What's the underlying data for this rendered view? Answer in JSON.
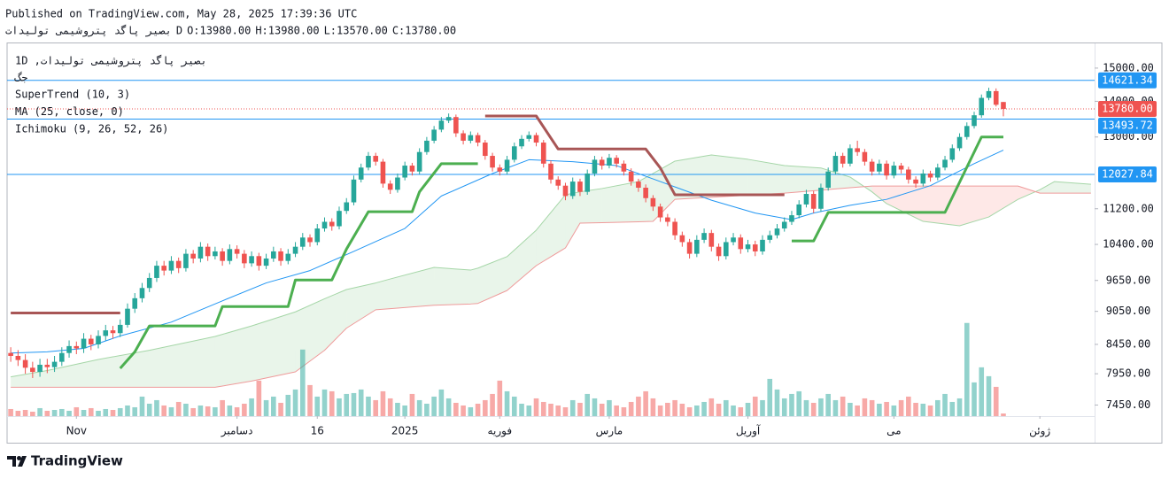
{
  "header": {
    "published": "Published on TradingView.com, May 28, 2025 17:39:36 UTC",
    "symbol": "تادیلوت یمیشورتپ دگاپ ریصب",
    "interval": "D",
    "ohlc": [
      "O:13980.00",
      "H:13980.00",
      "L:13570.00",
      "C:13780.00"
    ]
  },
  "chart_data": {
    "type": "candlestick",
    "legend": {
      "title": "1D ,تادیلوت یمیشورتپ دگاپ ریصب",
      "exchange": "گج",
      "indicators": [
        "SuperTrend (10, 3)",
        "MA (25, close, 0)",
        "Ichimoku (9, 26, 52, 26)"
      ]
    },
    "log_scale": true,
    "grid": false,
    "ylim": [
      7280,
      15790
    ],
    "yticks": [
      {
        "value": 15000,
        "label": "15000.00"
      },
      {
        "value": 14000,
        "label": "14000.00"
      },
      {
        "value": 13000,
        "label": "13000.00"
      },
      {
        "value": 11200,
        "label": "11200.00"
      },
      {
        "value": 10400,
        "label": "10400.00"
      },
      {
        "value": 9650,
        "label": "9650.00"
      },
      {
        "value": 9050,
        "label": "9050.00"
      },
      {
        "value": 8450,
        "label": "8450.00"
      },
      {
        "value": 7950,
        "label": "7950.00"
      },
      {
        "value": 7450,
        "label": "7450.00"
      }
    ],
    "xlim": [
      -0.5,
      148.5
    ],
    "xticks": [
      {
        "value": 9,
        "label": "Nov"
      },
      {
        "value": 31,
        "label": "دسامبر"
      },
      {
        "value": 42,
        "label": "16"
      },
      {
        "value": 54,
        "label": "2025"
      },
      {
        "value": 67,
        "label": "فوریه"
      },
      {
        "value": 82,
        "label": "مارس"
      },
      {
        "value": 101,
        "label": "آوریل"
      },
      {
        "value": 121,
        "label": "می"
      },
      {
        "value": 141,
        "label": "ژوئن"
      }
    ],
    "up_color": "#26a69a",
    "down_color": "#ef5350",
    "candles": [
      [
        8300,
        8400,
        8150,
        8250
      ],
      [
        8250,
        8350,
        8080,
        8180
      ],
      [
        8180,
        8280,
        7950,
        8050
      ],
      [
        8050,
        8150,
        7880,
        7980
      ],
      [
        7980,
        8200,
        7900,
        8100
      ],
      [
        8100,
        8200,
        7960,
        8060
      ],
      [
        8060,
        8250,
        7980,
        8150
      ],
      [
        8150,
        8400,
        8080,
        8300
      ],
      [
        8300,
        8520,
        8220,
        8420
      ],
      [
        8420,
        8500,
        8280,
        8380
      ],
      [
        8380,
        8650,
        8300,
        8550
      ],
      [
        8550,
        8620,
        8350,
        8450
      ],
      [
        8450,
        8700,
        8380,
        8600
      ],
      [
        8600,
        8800,
        8520,
        8700
      ],
      [
        8700,
        8780,
        8550,
        8650
      ],
      [
        8650,
        8900,
        8580,
        8800
      ],
      [
        8800,
        9200,
        8750,
        9100
      ],
      [
        9100,
        9400,
        9020,
        9300
      ],
      [
        9300,
        9600,
        9220,
        9500
      ],
      [
        9500,
        9800,
        9420,
        9700
      ],
      [
        9700,
        10050,
        9620,
        9950
      ],
      [
        9950,
        10050,
        9750,
        9850
      ],
      [
        9850,
        10150,
        9780,
        10050
      ],
      [
        10050,
        10120,
        9800,
        9900
      ],
      [
        9900,
        10300,
        9830,
        10200
      ],
      [
        10200,
        10280,
        10000,
        10100
      ],
      [
        10100,
        10450,
        10020,
        10350
      ],
      [
        10350,
        10420,
        10050,
        10150
      ],
      [
        10150,
        10350,
        10080,
        10250
      ],
      [
        10250,
        10320,
        9950,
        10050
      ],
      [
        10050,
        10400,
        9980,
        10300
      ],
      [
        10300,
        10380,
        10100,
        10200
      ],
      [
        10200,
        10280,
        9900,
        10000
      ],
      [
        10000,
        10250,
        9930,
        10150
      ],
      [
        10150,
        10220,
        9850,
        9950
      ],
      [
        9950,
        10200,
        9880,
        10100
      ],
      [
        10100,
        10350,
        10030,
        10250
      ],
      [
        10250,
        10320,
        9950,
        10050
      ],
      [
        10050,
        10300,
        9980,
        10200
      ],
      [
        10200,
        10450,
        10130,
        10350
      ],
      [
        10350,
        10650,
        10280,
        10550
      ],
      [
        10550,
        10620,
        10350,
        10450
      ],
      [
        10450,
        10850,
        10380,
        10750
      ],
      [
        10750,
        11000,
        10680,
        10900
      ],
      [
        10900,
        10980,
        10700,
        10800
      ],
      [
        10800,
        11250,
        10730,
        11150
      ],
      [
        11150,
        11450,
        11080,
        11350
      ],
      [
        11350,
        12000,
        11280,
        11900
      ],
      [
        11900,
        12300,
        11830,
        12200
      ],
      [
        12200,
        12600,
        12130,
        12500
      ],
      [
        12500,
        12580,
        12250,
        12350
      ],
      [
        12350,
        12420,
        11700,
        11800
      ],
      [
        11800,
        11880,
        11550,
        11650
      ],
      [
        11650,
        12050,
        11580,
        11950
      ],
      [
        11950,
        12350,
        11880,
        12250
      ],
      [
        12250,
        12320,
        12000,
        12100
      ],
      [
        12100,
        12700,
        12030,
        12600
      ],
      [
        12600,
        13000,
        12530,
        12900
      ],
      [
        12900,
        13300,
        12830,
        13200
      ],
      [
        13200,
        13550,
        13130,
        13450
      ],
      [
        13450,
        13650,
        13380,
        13550
      ],
      [
        13550,
        13620,
        13000,
        13100
      ],
      [
        13100,
        13180,
        12800,
        12900
      ],
      [
        12900,
        13150,
        12830,
        13050
      ],
      [
        13050,
        13120,
        12750,
        12850
      ],
      [
        12850,
        12920,
        12400,
        12500
      ],
      [
        12500,
        12580,
        12100,
        12200
      ],
      [
        12200,
        12280,
        12000,
        12100
      ],
      [
        12100,
        12500,
        12030,
        12400
      ],
      [
        12400,
        12850,
        12330,
        12750
      ],
      [
        12750,
        13050,
        12680,
        12950
      ],
      [
        12950,
        13150,
        12880,
        13050
      ],
      [
        13050,
        13120,
        12750,
        12850
      ],
      [
        12850,
        12920,
        12200,
        12300
      ],
      [
        12300,
        12380,
        11800,
        11900
      ],
      [
        11900,
        11980,
        11650,
        11750
      ],
      [
        11750,
        11820,
        11400,
        11500
      ],
      [
        11500,
        11950,
        11430,
        11850
      ],
      [
        11850,
        11920,
        11500,
        11600
      ],
      [
        11600,
        12150,
        11530,
        12050
      ],
      [
        12050,
        12500,
        11980,
        12400
      ],
      [
        12400,
        12480,
        12150,
        12250
      ],
      [
        12250,
        12550,
        12180,
        12450
      ],
      [
        12450,
        12520,
        12200,
        12300
      ],
      [
        12300,
        12380,
        12000,
        12100
      ],
      [
        12100,
        12180,
        11750,
        11850
      ],
      [
        11850,
        11920,
        11600,
        11700
      ],
      [
        11700,
        11780,
        11350,
        11450
      ],
      [
        11450,
        11520,
        11150,
        11250
      ],
      [
        11250,
        11320,
        10900,
        11000
      ],
      [
        11000,
        11080,
        10800,
        10900
      ],
      [
        10900,
        10980,
        10500,
        10600
      ],
      [
        10600,
        10680,
        10350,
        10450
      ],
      [
        10450,
        10520,
        10100,
        10200
      ],
      [
        10200,
        10600,
        10130,
        10500
      ],
      [
        10500,
        10750,
        10430,
        10650
      ],
      [
        10650,
        10720,
        10250,
        10350
      ],
      [
        10350,
        10420,
        10050,
        10150
      ],
      [
        10150,
        10550,
        10080,
        10450
      ],
      [
        10450,
        10650,
        10380,
        10550
      ],
      [
        10550,
        10620,
        10200,
        10300
      ],
      [
        10300,
        10500,
        10230,
        10400
      ],
      [
        10400,
        10480,
        10150,
        10250
      ],
      [
        10250,
        10600,
        10180,
        10500
      ],
      [
        10500,
        10700,
        10430,
        10600
      ],
      [
        10600,
        10850,
        10530,
        10750
      ],
      [
        10750,
        11000,
        10680,
        10900
      ],
      [
        10900,
        11150,
        10830,
        11050
      ],
      [
        11050,
        11400,
        10980,
        11300
      ],
      [
        11300,
        11650,
        11230,
        11550
      ],
      [
        11550,
        11620,
        11100,
        11200
      ],
      [
        11200,
        11800,
        11130,
        11700
      ],
      [
        11700,
        12200,
        11630,
        12100
      ],
      [
        12100,
        12600,
        12030,
        12500
      ],
      [
        12500,
        12580,
        12200,
        12300
      ],
      [
        12300,
        12800,
        12230,
        12700
      ],
      [
        12700,
        12900,
        12500,
        12600
      ],
      [
        12600,
        12680,
        12250,
        12350
      ],
      [
        12350,
        12420,
        12000,
        12100
      ],
      [
        12100,
        12400,
        12030,
        12300
      ],
      [
        12300,
        12380,
        11900,
        12000
      ],
      [
        12000,
        12350,
        11930,
        12250
      ],
      [
        12250,
        12320,
        12050,
        12150
      ],
      [
        12150,
        12220,
        11800,
        11900
      ],
      [
        11900,
        11980,
        11700,
        11800
      ],
      [
        11800,
        12150,
        11730,
        12050
      ],
      [
        12050,
        12120,
        11850,
        11950
      ],
      [
        11950,
        12300,
        11880,
        12200
      ],
      [
        12200,
        12500,
        12130,
        12400
      ],
      [
        12400,
        12800,
        12330,
        12700
      ],
      [
        12700,
        13100,
        12630,
        13000
      ],
      [
        13000,
        13400,
        12930,
        13300
      ],
      [
        13300,
        13700,
        13230,
        13600
      ],
      [
        13600,
        14200,
        13530,
        14100
      ],
      [
        14100,
        14400,
        14030,
        14300
      ],
      [
        14300,
        14380,
        13850,
        13900
      ],
      [
        13980,
        13980,
        13570,
        13780
      ]
    ],
    "volume": {
      "vlim": [
        0,
        420
      ],
      "values": [
        8,
        6,
        7,
        5,
        9,
        6,
        7,
        8,
        6,
        10,
        7,
        9,
        6,
        8,
        7,
        9,
        12,
        10,
        22,
        14,
        18,
        12,
        10,
        16,
        14,
        9,
        12,
        11,
        10,
        18,
        12,
        10,
        14,
        20,
        40,
        18,
        22,
        15,
        24,
        30,
        75,
        35,
        22,
        30,
        28,
        20,
        25,
        26,
        30,
        22,
        18,
        28,
        20,
        15,
        12,
        25,
        18,
        14,
        22,
        30,
        20,
        15,
        12,
        10,
        14,
        18,
        25,
        40,
        28,
        22,
        14,
        12,
        20,
        16,
        14,
        12,
        10,
        18,
        15,
        25,
        20,
        14,
        18,
        12,
        10,
        16,
        22,
        28,
        20,
        12,
        15,
        18,
        14,
        10,
        12,
        16,
        20,
        14,
        18,
        12,
        10,
        15,
        22,
        18,
        42,
        30,
        20,
        25,
        28,
        18,
        15,
        20,
        25,
        18,
        22,
        15,
        12,
        20,
        18,
        14,
        16,
        12,
        18,
        22,
        15,
        14,
        12,
        18,
        25,
        16,
        20,
        105,
        38,
        55,
        45,
        33,
        3
      ]
    },
    "ma": {
      "color": "#2196f3",
      "x": [
        0,
        5,
        10,
        15,
        22,
        29,
        35,
        41,
        47,
        54,
        59,
        66,
        71,
        77,
        83,
        89,
        96,
        102,
        107,
        110,
        115,
        120,
        126,
        132,
        136
      ],
      "values": [
        8300,
        8320,
        8380,
        8600,
        8850,
        9250,
        9600,
        9850,
        10250,
        10750,
        11500,
        12050,
        12400,
        12350,
        12250,
        11850,
        11400,
        11100,
        10950,
        11100,
        11280,
        11420,
        11750,
        12300,
        12650
      ]
    },
    "supertrend": [
      {
        "color": "#a85656",
        "x": [
          0,
          15,
          16,
          65,
          72,
          75,
          87,
          89,
          91,
          106
        ],
        "values": [
          9020,
          9020,
          null,
          13580,
          13580,
          12680,
          12680,
          12190,
          11530,
          11530
        ]
      },
      {
        "color": "#4caf50",
        "x": [
          15,
          17,
          19,
          28,
          29,
          38,
          39,
          44,
          46,
          49,
          55,
          56,
          59,
          64,
          65,
          107,
          110,
          112,
          128,
          133,
          136
        ],
        "values": [
          8040,
          8320,
          8780,
          8780,
          9140,
          9140,
          9660,
          9660,
          10300,
          11130,
          11130,
          11600,
          12300,
          12300,
          null,
          10475,
          10475,
          11115,
          11115,
          13000,
          13000
        ]
      }
    ],
    "ichimoku": {
      "x": [
        0,
        5,
        12,
        19,
        28,
        33,
        39,
        43,
        46,
        50,
        52,
        58,
        63,
        64,
        68,
        72,
        76,
        78,
        81,
        86,
        88,
        91,
        96,
        101,
        106,
        111,
        115,
        118,
        120,
        125,
        130,
        134,
        138,
        141,
        143,
        148
      ],
      "span_a": {
        "color": "#a5d6a7",
        "values": [
          7899,
          8003,
          8190,
          8347,
          8590,
          8780,
          9040,
          9290,
          9470,
          9600,
          9680,
          9915,
          9860,
          9900,
          10140,
          10712,
          11530,
          11600,
          11680,
          11850,
          12050,
          12365,
          12525,
          12411,
          12250,
          12190,
          11962,
          11600,
          11320,
          10910,
          10810,
          11010,
          11420,
          11650,
          11850,
          11785
        ]
      },
      "span_b": {
        "color": "#ef9a9a",
        "values": [
          7730,
          7730,
          7730,
          7730,
          7730,
          7830,
          7981,
          8347,
          8740,
          9080,
          9100,
          9165,
          9190,
          9200,
          9450,
          9952,
          10325,
          10870,
          10880,
          10900,
          10910,
          11420,
          11470,
          11520,
          11570,
          11640,
          11700,
          11740,
          11740,
          11740,
          11740,
          11740,
          11740,
          11570,
          11570,
          11570
        ]
      },
      "fill_up": "rgba(76,175,80,0.12)",
      "fill_down": "rgba(244,67,54,0.12)"
    },
    "levels": {
      "color": "#2196f3",
      "values": [
        14621.34,
        13493.72,
        12027.84
      ]
    },
    "last_price": {
      "value": 13780,
      "label": "13780.00",
      "color": "#ef5350"
    }
  },
  "footer": {
    "brand": "TradingView"
  }
}
